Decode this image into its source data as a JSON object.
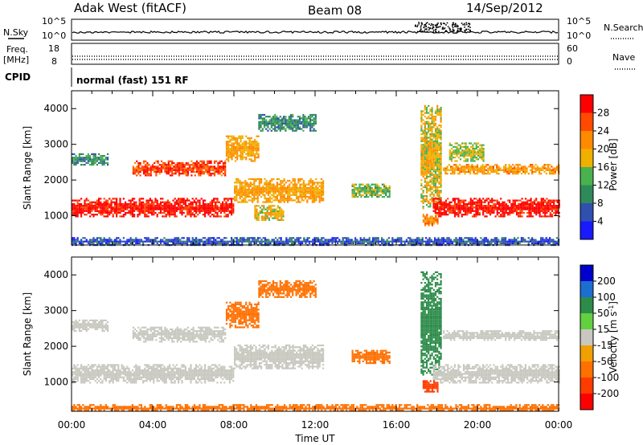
{
  "header": {
    "title": "Adak West (fitACF)",
    "beam": "Beam 08",
    "date": "14/Sep/2012"
  },
  "top_panels": {
    "nsky_label": "N.Sky",
    "nsearch_label": "N.Search",
    "noise_ticks": [
      "10^5",
      "10^0"
    ],
    "freq_label_1": "Freq.",
    "freq_label_2": "[MHz]",
    "freq_ticks": [
      "18",
      "8"
    ],
    "nave_label": "Nave",
    "nave_ticks": [
      "60",
      "0"
    ],
    "cpid_label": "CPID",
    "cpid_text": "normal (fast) 151 RF"
  },
  "colors": {
    "power": [
      "#1a1aff",
      "#3050b0",
      "#2f8a5a",
      "#49b24f",
      "#f0b000",
      "#ff8a00",
      "#ff4a00",
      "#ff0000"
    ],
    "velocity": [
      "#0000cc",
      "#1c6ed0",
      "#2d8c4a",
      "#62d040",
      "#c8c8c0",
      "#f0a000",
      "#ff7000",
      "#ff3c00",
      "#ff0000"
    ]
  },
  "chart_data": [
    {
      "type": "heatmap",
      "name": "power",
      "xlabel": "",
      "ylabel": "Slant Range [km]",
      "xlim": [
        0,
        24
      ],
      "ylim": [
        180,
        4500
      ],
      "y_ticks": [
        "1000",
        "2000",
        "3000",
        "4000"
      ],
      "colorbar": {
        "label": "Power [dB]",
        "ticks": [
          "4",
          "8",
          "12",
          "16",
          "20",
          "24",
          "28"
        ],
        "range": [
          0,
          32
        ]
      },
      "bands": [
        {
          "t0": 0.0,
          "t1": 8.0,
          "r0": 1000,
          "r1": 1500,
          "level": 30
        },
        {
          "t0": 8.0,
          "t1": 12.4,
          "r0": 1400,
          "r1": 2050,
          "level": 20
        },
        {
          "t0": 9.0,
          "t1": 10.4,
          "r0": 900,
          "r1": 1300,
          "level": 18
        },
        {
          "t0": 3.0,
          "t1": 7.6,
          "r0": 2150,
          "r1": 2550,
          "level": 27
        },
        {
          "t0": 7.6,
          "t1": 9.2,
          "r0": 2550,
          "r1": 3250,
          "level": 20
        },
        {
          "t0": 0.0,
          "t1": 1.8,
          "r0": 2450,
          "r1": 2750,
          "level": 10
        },
        {
          "t0": 9.2,
          "t1": 12.0,
          "r0": 3400,
          "r1": 3850,
          "level": 10
        },
        {
          "t0": 13.8,
          "t1": 15.7,
          "r0": 1550,
          "r1": 1900,
          "level": 14
        },
        {
          "t0": 17.2,
          "t1": 18.2,
          "r0": 1200,
          "r1": 4100,
          "level": 18
        },
        {
          "t0": 17.8,
          "t1": 24.0,
          "r0": 1000,
          "r1": 1500,
          "level": 30
        },
        {
          "t0": 18.3,
          "t1": 24.0,
          "r0": 2200,
          "r1": 2450,
          "level": 21
        },
        {
          "t0": 18.6,
          "t1": 20.3,
          "r0": 2550,
          "r1": 3050,
          "level": 16
        },
        {
          "t0": 17.3,
          "t1": 18.0,
          "r0": 750,
          "r1": 1050,
          "level": 22
        },
        {
          "t0": 0.0,
          "t1": 24.0,
          "r0": 200,
          "r1": 400,
          "level": 6
        }
      ]
    },
    {
      "type": "heatmap",
      "name": "velocity",
      "xlabel": "Time UT",
      "ylabel": "Slant Range [km]",
      "xlim": [
        0,
        24
      ],
      "ylim": [
        180,
        4500
      ],
      "x_ticks": [
        "00:00",
        "04:00",
        "08:00",
        "12:00",
        "16:00",
        "20:00",
        "00:00"
      ],
      "y_ticks": [
        "1000",
        "2000",
        "3000",
        "4000"
      ],
      "colorbar": {
        "label_parts": [
          "Velocity [m s",
          "-1",
          "]"
        ],
        "ticks": [
          "200",
          "100",
          "50",
          "15",
          "-15",
          "-50",
          "-100",
          "-200"
        ]
      },
      "bands": [
        {
          "t0": 0.0,
          "t1": 8.0,
          "r0": 1000,
          "r1": 1500,
          "v": 0
        },
        {
          "t0": 8.0,
          "t1": 12.4,
          "r0": 1400,
          "r1": 2050,
          "v": 0
        },
        {
          "t0": 3.0,
          "t1": 7.6,
          "r0": 2150,
          "r1": 2550,
          "v": 0
        },
        {
          "t0": 7.6,
          "t1": 9.2,
          "r0": 2550,
          "r1": 3250,
          "v": -60
        },
        {
          "t0": 0.0,
          "t1": 1.8,
          "r0": 2450,
          "r1": 2750,
          "v": 0
        },
        {
          "t0": 9.2,
          "t1": 12.0,
          "r0": 3400,
          "r1": 3850,
          "v": -40
        },
        {
          "t0": 13.8,
          "t1": 15.7,
          "r0": 1550,
          "r1": 1900,
          "v": -70
        },
        {
          "t0": 17.2,
          "t1": 18.2,
          "r0": 1200,
          "r1": 4100,
          "v": 60
        },
        {
          "t0": 17.8,
          "t1": 24.0,
          "r0": 1000,
          "r1": 1500,
          "v": 0
        },
        {
          "t0": 18.3,
          "t1": 24.0,
          "r0": 2200,
          "r1": 2450,
          "v": 0
        },
        {
          "t0": 17.3,
          "t1": 18.0,
          "r0": 750,
          "r1": 1050,
          "v": -90
        },
        {
          "t0": 0.0,
          "t1": 24.0,
          "r0": 200,
          "r1": 380,
          "v": -60
        }
      ]
    }
  ]
}
